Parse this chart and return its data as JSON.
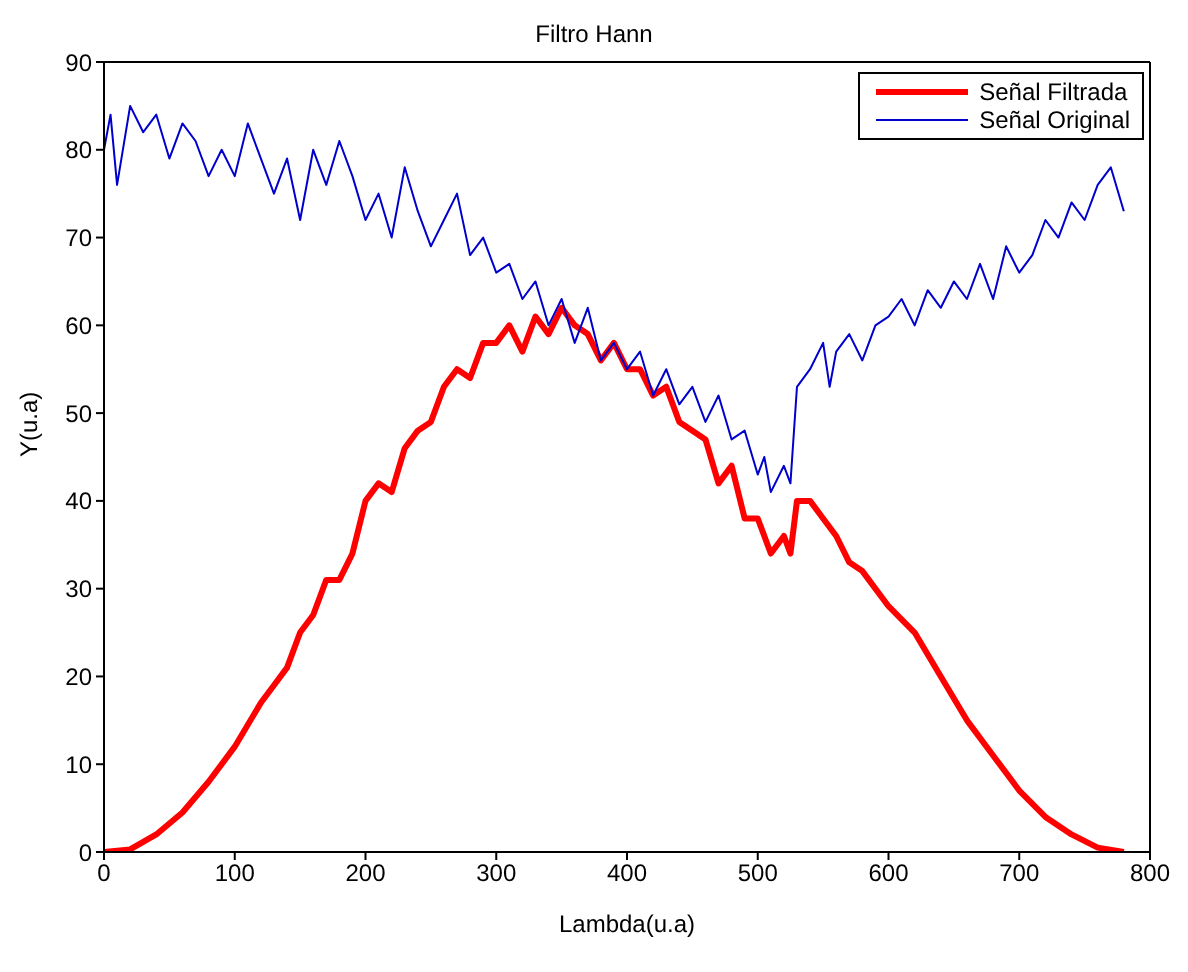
{
  "chart_data": {
    "type": "line",
    "title": "Filtro Hann",
    "xlabel": "Lambda(u.a)",
    "ylabel": "Y(u.a)",
    "xlim": [
      0,
      800
    ],
    "ylim": [
      0,
      90
    ],
    "xticks": [
      0,
      100,
      200,
      300,
      400,
      500,
      600,
      700,
      800
    ],
    "yticks": [
      0,
      10,
      20,
      30,
      40,
      50,
      60,
      70,
      80,
      90
    ],
    "grid": false,
    "legend": "top right",
    "marker": "none",
    "series": [
      {
        "name": "Señal Filtrada",
        "color": "#ff0000",
        "x": [
          0,
          20,
          40,
          60,
          80,
          100,
          120,
          130,
          140,
          150,
          160,
          170,
          180,
          190,
          200,
          210,
          220,
          230,
          240,
          250,
          260,
          270,
          280,
          290,
          300,
          310,
          320,
          330,
          340,
          350,
          360,
          370,
          380,
          390,
          400,
          410,
          420,
          430,
          440,
          450,
          460,
          470,
          480,
          490,
          500,
          510,
          520,
          525,
          530,
          540,
          550,
          560,
          570,
          580,
          600,
          620,
          640,
          660,
          680,
          700,
          720,
          740,
          760,
          780
        ],
        "values": [
          0,
          0.3,
          2,
          4.5,
          8,
          12,
          17,
          19,
          21,
          25,
          27,
          31,
          31,
          34,
          40,
          42,
          41,
          46,
          48,
          49,
          53,
          55,
          54,
          58,
          58,
          60,
          57,
          61,
          59,
          62,
          60,
          59,
          56,
          58,
          55,
          55,
          52,
          53,
          49,
          48,
          47,
          42,
          44,
          38,
          38,
          34,
          36,
          34,
          40,
          40,
          38,
          36,
          33,
          32,
          28,
          25,
          20,
          15,
          11,
          7,
          4,
          2,
          0.5,
          0
        ]
      },
      {
        "name": "Señal Original",
        "color": "#0000cc",
        "x": [
          0,
          5,
          10,
          20,
          30,
          40,
          50,
          60,
          70,
          80,
          90,
          100,
          110,
          120,
          130,
          140,
          150,
          160,
          170,
          180,
          190,
          200,
          210,
          220,
          230,
          240,
          250,
          260,
          270,
          280,
          290,
          300,
          310,
          320,
          330,
          340,
          350,
          360,
          370,
          380,
          390,
          400,
          410,
          420,
          430,
          440,
          450,
          460,
          470,
          480,
          490,
          500,
          505,
          510,
          520,
          525,
          530,
          540,
          550,
          555,
          560,
          570,
          580,
          590,
          600,
          610,
          620,
          630,
          640,
          650,
          660,
          670,
          680,
          690,
          700,
          710,
          720,
          730,
          740,
          750,
          760,
          770,
          780
        ],
        "values": [
          80,
          84,
          76,
          85,
          82,
          84,
          79,
          83,
          81,
          77,
          80,
          77,
          83,
          79,
          75,
          79,
          72,
          80,
          76,
          81,
          77,
          72,
          75,
          70,
          78,
          73,
          69,
          72,
          75,
          68,
          70,
          66,
          67,
          63,
          65,
          60,
          63,
          58,
          62,
          56,
          58,
          55,
          57,
          52,
          55,
          51,
          53,
          49,
          52,
          47,
          48,
          43,
          45,
          41,
          44,
          42,
          53,
          55,
          58,
          53,
          57,
          59,
          56,
          60,
          61,
          63,
          60,
          64,
          62,
          65,
          63,
          67,
          63,
          69,
          66,
          68,
          72,
          70,
          74,
          72,
          76,
          78,
          73
        ]
      }
    ]
  }
}
